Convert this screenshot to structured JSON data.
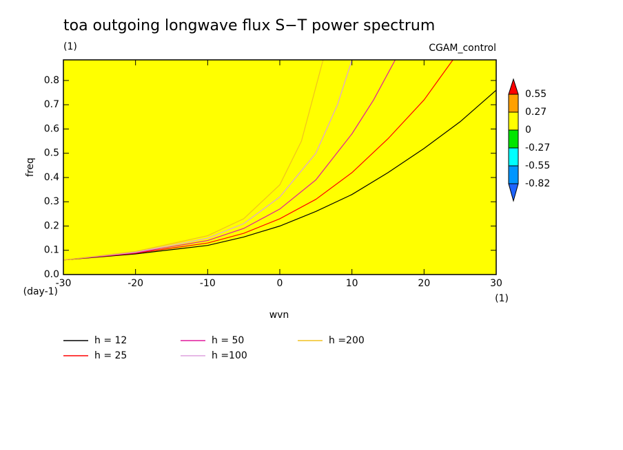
{
  "chart_data": {
    "type": "line",
    "title": "toa outgoing longwave flux S−T power spectrum",
    "subtitle_left": "(1)",
    "subtitle_right": "CGAM_control",
    "x_label": "wvn",
    "y_label": "freq",
    "x_units": "(1)",
    "y_units": "(day-1)",
    "xlim": [
      -30,
      30
    ],
    "ylim": [
      0,
      0.885
    ],
    "xticks": [
      -30,
      -20,
      -10,
      0,
      10,
      20,
      30
    ],
    "yticks": [
      {
        "value": 0,
        "label": "0.0"
      },
      0.1,
      0.2,
      0.3,
      0.4,
      0.5,
      0.6,
      0.7,
      0.8
    ],
    "field_color": "#ffff00",
    "colorbar": {
      "levels": [
        0.55,
        0.27,
        0,
        -0.27,
        -0.55,
        -0.82
      ],
      "colors": [
        "#ff0000",
        "#ffa000",
        "#ffff00",
        "#00e600",
        "#00ffff",
        "#0096ff",
        "#1e64ff"
      ]
    },
    "series": [
      {
        "name": "h = 12",
        "color": "#000000",
        "x": [
          -30,
          -20,
          -10,
          -5,
          0,
          5,
          10,
          15,
          20,
          25,
          30
        ],
        "values": [
          0.06,
          0.085,
          0.12,
          0.155,
          0.2,
          0.26,
          0.33,
          0.42,
          0.52,
          0.63,
          0.76
        ]
      },
      {
        "name": "h = 25",
        "color": "#ff0000",
        "x": [
          -30,
          -20,
          -10,
          -5,
          0,
          5,
          10,
          15,
          20,
          24
        ],
        "values": [
          0.06,
          0.088,
          0.13,
          0.17,
          0.23,
          0.31,
          0.42,
          0.56,
          0.72,
          0.885
        ]
      },
      {
        "name": "h = 50",
        "color": "#e0189c",
        "x": [
          -30,
          -20,
          -10,
          -5,
          0,
          5,
          10,
          13,
          16
        ],
        "values": [
          0.06,
          0.09,
          0.14,
          0.19,
          0.27,
          0.39,
          0.58,
          0.72,
          0.885
        ]
      },
      {
        "name": "h =100",
        "color": "#dda0dd",
        "x": [
          -30,
          -20,
          -10,
          -5,
          0,
          5,
          8,
          10
        ],
        "values": [
          0.06,
          0.092,
          0.15,
          0.21,
          0.32,
          0.5,
          0.7,
          0.885
        ]
      },
      {
        "name": "h =200",
        "color": "#f0c020",
        "x": [
          -30,
          -20,
          -10,
          -5,
          0,
          3,
          6
        ],
        "values": [
          0.06,
          0.095,
          0.16,
          0.23,
          0.37,
          0.55,
          0.885
        ]
      }
    ]
  }
}
